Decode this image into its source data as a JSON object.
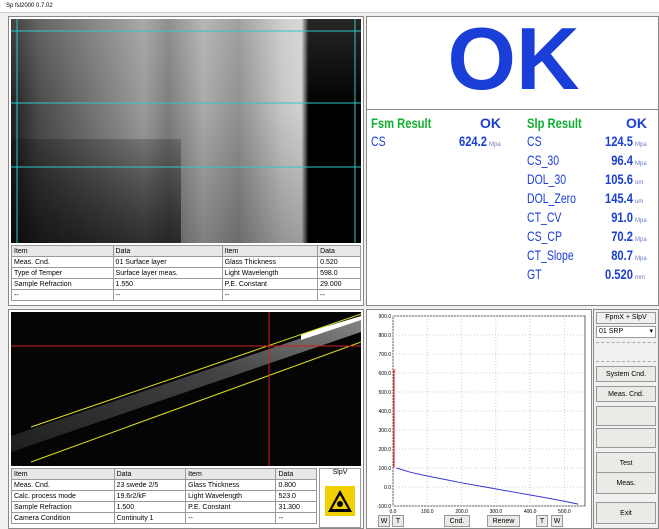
{
  "window_title": "Sp fsl2000 0.7.02",
  "status": "OK",
  "top_table": {
    "headers": [
      "Item",
      "Data",
      "Item",
      "Data"
    ],
    "rows": [
      [
        "Meas. Cnd.",
        "01 Surface layer",
        "Glass Thickness",
        "0.520"
      ],
      [
        "Type of Temper",
        "Surface layer meas.",
        "Light Wavelength",
        "598.0"
      ],
      [
        "Sample Refraction",
        "1.550",
        "P.E. Constant",
        "29.000"
      ],
      [
        "--",
        "--",
        "--",
        "--"
      ]
    ]
  },
  "fsm": {
    "label": "Fsm Result",
    "status": "OK",
    "rows": [
      {
        "name": "CS",
        "value": "624.2",
        "unit": "Mpa"
      }
    ]
  },
  "slp": {
    "label": "Slp Result",
    "status": "OK",
    "rows": [
      {
        "name": "CS",
        "value": "124.5",
        "unit": "Mpa"
      },
      {
        "name": "CS_30",
        "value": "96.4",
        "unit": "Mpa"
      },
      {
        "name": "DOL_30",
        "value": "105.6",
        "unit": "um"
      },
      {
        "name": "DOL_Zero",
        "value": "145.4",
        "unit": "um"
      },
      {
        "name": "CT_CV",
        "value": "91.0",
        "unit": "Mpa"
      },
      {
        "name": "CS_CP",
        "value": "70.2",
        "unit": "Mpa"
      },
      {
        "name": "CT_Slope",
        "value": "80.7",
        "unit": "Mpa"
      },
      {
        "name": "GT",
        "value": "0.520",
        "unit": "mm"
      }
    ]
  },
  "bottom_table": {
    "headers": [
      "Item",
      "Data",
      "Item",
      "Data"
    ],
    "side_label": "SlpV",
    "rows": [
      [
        "Meas. Cnd.",
        "23 swede 2/5",
        "Glass Thickness",
        "0.800"
      ],
      [
        "Calc. process mode",
        "19.6r2/kF",
        "Light Wavelength",
        "523.0"
      ],
      [
        "Sample Refraction",
        "1.500",
        "P.E. Constant",
        "31.300"
      ],
      [
        "Camera Condition",
        "Continuity 1",
        "--",
        "--"
      ]
    ]
  },
  "graph": {
    "type": "line",
    "ylim": [
      -100,
      900
    ],
    "yticks": [
      {
        "value": 900,
        "label": "900.0"
      },
      {
        "value": 800,
        "label": "800.0"
      },
      {
        "value": 700,
        "label": "700.0"
      },
      {
        "value": 600,
        "label": "600.0"
      },
      {
        "value": 500,
        "label": "500.0"
      },
      {
        "value": 400,
        "label": "400.0"
      },
      {
        "value": 300,
        "label": "300.0"
      },
      {
        "value": 200,
        "label": "200.0"
      },
      {
        "value": 100,
        "label": "100.0"
      },
      {
        "value": 0,
        "label": "0.0"
      },
      {
        "value": -100,
        "label": "-100.0"
      }
    ],
    "xlim": [
      0,
      560
    ],
    "xticks": [
      {
        "value": 0,
        "label": "0.0"
      },
      {
        "value": 100,
        "label": "100.0"
      },
      {
        "value": 200,
        "label": "200.0"
      },
      {
        "value": 300,
        "label": "300.0"
      },
      {
        "value": 400,
        "label": "400.0"
      },
      {
        "value": 500,
        "label": "500.0"
      }
    ],
    "series": [
      {
        "color": "#e01010",
        "x": [
          3,
          3
        ],
        "values": [
          610,
          100
        ]
      },
      {
        "color": "#3838d0",
        "x": [
          10,
          50,
          100,
          150,
          200,
          250,
          300,
          350,
          400,
          450,
          500,
          540
        ],
        "values": [
          100,
          78,
          58,
          40,
          22,
          6,
          -10,
          -26,
          -42,
          -58,
          -75,
          -90
        ]
      }
    ]
  },
  "graph_buttons": [
    "W",
    "T",
    "Cnd.",
    "Renew",
    "T",
    "W"
  ],
  "side_panel": {
    "mode": "FpmX + SlpV",
    "select": "01 SRP",
    "buttons": [
      "System Cnd.",
      "Meas. Cnd.",
      "Test",
      "Meas.",
      "Exit"
    ]
  }
}
